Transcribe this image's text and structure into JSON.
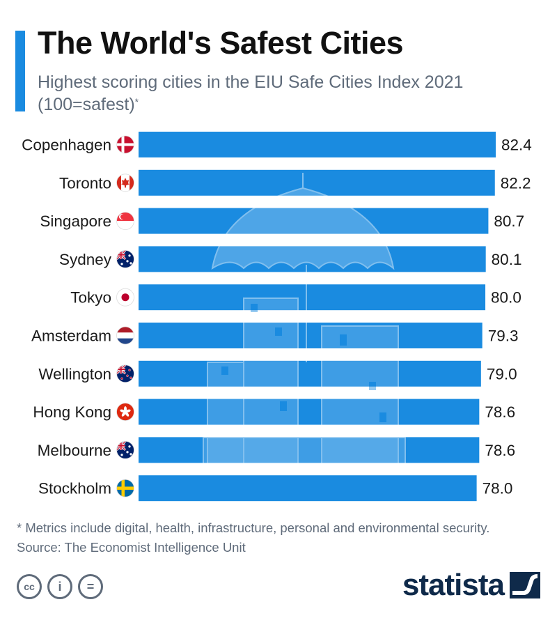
{
  "header": {
    "title": "The World's Safest Cities",
    "subtitle_line1": "Highest scoring cities in the EIU Safe Cities Index 2021",
    "subtitle_line2": "(100=safest)",
    "subtitle_mark": "*"
  },
  "colors": {
    "accent": "#1a8be0",
    "bar": "#1a8be0",
    "illustration": "#ffffff",
    "text_muted": "#5f6b7a",
    "brand": "#0f2a4a"
  },
  "chart_data": {
    "type": "bar",
    "orientation": "horizontal",
    "title": "The World's Safest Cities",
    "subtitle": "Highest scoring cities in the EIU Safe Cities Index 2021 (100=safest)*",
    "xlabel": "",
    "ylabel": "",
    "categories": [
      "Copenhagen",
      "Toronto",
      "Singapore",
      "Sydney",
      "Tokyo",
      "Amsterdam",
      "Wellington",
      "Hong Kong",
      "Melbourne",
      "Stockholm"
    ],
    "values": [
      82.4,
      82.2,
      80.7,
      80.1,
      80.0,
      79.3,
      79.0,
      78.6,
      78.6,
      78.0
    ],
    "value_labels": [
      "82.4",
      "82.2",
      "80.7",
      "80.1",
      "80.0",
      "79.3",
      "79.0",
      "78.6",
      "78.6",
      "78.0"
    ],
    "flags": [
      "denmark",
      "canada",
      "singapore",
      "australia",
      "japan",
      "netherlands",
      "new-zealand",
      "hong-kong",
      "australia",
      "sweden"
    ],
    "xlim": [
      0,
      82.4
    ],
    "grid": false,
    "legend": "none"
  },
  "footer": {
    "note": "* Metrics include digital, health, infrastructure, personal and environmental security.",
    "source": "Source: The Economist Intelligence Unit",
    "brand": "statista",
    "licence_icons": [
      "cc-icon",
      "by-icon",
      "nd-icon"
    ],
    "licence_glyphs": [
      "cc",
      "i",
      "="
    ]
  }
}
